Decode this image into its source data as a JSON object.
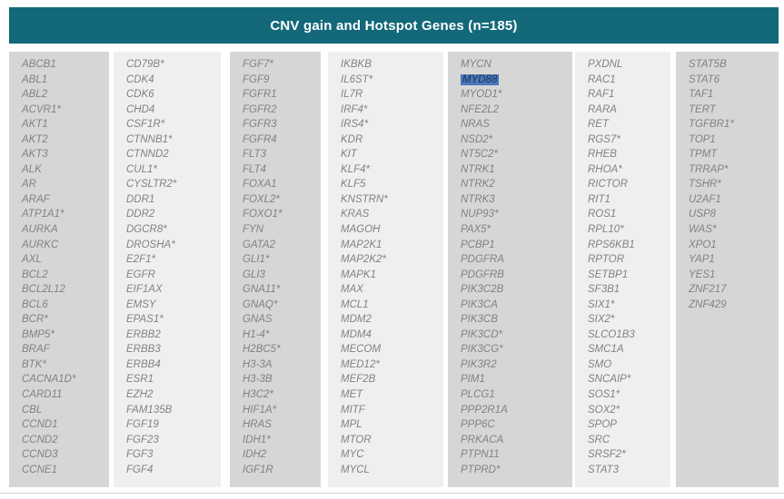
{
  "title": "CNV gain and Hotspot Genes (n=185)",
  "highlight": {
    "gene": "MYD88",
    "background": "#4878b8",
    "text_color": "#1c3257"
  },
  "colors": {
    "header_background": "#136879",
    "header_text": "#ffffff",
    "column_dark": "#d6d6d6",
    "column_light": "#efefef",
    "gene_text": "#828282"
  },
  "columns": [
    [
      "ABCB1",
      "ABL1",
      "ABL2",
      "ACVR1*",
      "AKT1",
      "AKT2",
      "AKT3",
      "ALK",
      "AR",
      "ARAF",
      "ATP1A1*",
      "AURKA",
      "AURKC",
      "AXL",
      "BCL2",
      "BCL2L12",
      "BCL6",
      "BCR*",
      "BMP5*",
      "BRAF",
      "BTK*",
      "CACNA1D*",
      "CARD11",
      "CBL",
      "CCND1",
      "CCND2",
      "CCND3",
      "CCNE1"
    ],
    [
      "CD79B*",
      "CDK4",
      "CDK6",
      "CHD4",
      "CSF1R*",
      "CTNNB1*",
      "CTNND2",
      "CUL1*",
      "CYSLTR2*",
      "DDR1",
      "DDR2",
      "DGCR8*",
      "DROSHA*",
      "E2F1*",
      "EGFR",
      "EIF1AX",
      "EMSY",
      "EPAS1*",
      "ERBB2",
      "ERBB3",
      "ERBB4",
      "ESR1",
      "EZH2",
      "FAM135B",
      "FGF19",
      "FGF23",
      "FGF3",
      "FGF4"
    ],
    [
      "FGF7*",
      "FGF9",
      "FGFR1",
      "FGFR2",
      "FGFR3",
      "FGFR4",
      "FLT3",
      "FLT4",
      "FOXA1",
      "FOXL2*",
      "FOXO1*",
      "FYN",
      "GATA2",
      "GLI1*",
      "GLI3",
      "GNA11*",
      "GNAQ*",
      "GNAS",
      "H1-4*",
      "H2BC5*",
      "H3-3A",
      "H3-3B",
      "H3C2*",
      "HIF1A*",
      "HRAS",
      "IDH1*",
      "IDH2",
      "IGF1R"
    ],
    [
      "IKBKB",
      "IL6ST*",
      "IL7R",
      "IRF4*",
      "IRS4*",
      "KDR",
      "KIT",
      "KLF4*",
      "KLF5",
      "KNSTRN*",
      "KRAS",
      "MAGOH",
      "MAP2K1",
      "MAP2K2*",
      "MAPK1",
      "MAX",
      "MCL1",
      "MDM2",
      "MDM4",
      "MECOM",
      "MED12*",
      "MEF2B",
      "MET",
      "MITF",
      "MPL",
      "MTOR",
      "MYC",
      "MYCL"
    ],
    [
      "MYCN",
      "MYD88",
      "MYOD1*",
      "NFE2L2",
      "NRAS",
      "NSD2*",
      "NT5C2*",
      "NTRK1",
      "NTRK2",
      "NTRK3",
      "NUP93*",
      "PAX5*",
      "PCBP1",
      "PDGFRA",
      "PDGFRB",
      "PIK3C2B",
      "PIK3CA",
      "PIK3CB",
      "PIK3CD*",
      "PIK3CG*",
      "PIK3R2",
      "PIM1",
      "PLCG1",
      "PPP2R1A",
      "PPP6C",
      "PRKACA",
      "PTPN11",
      "PTPRD*"
    ],
    [
      "PXDNL",
      "RAC1",
      "RAF1",
      "RARA",
      "RET",
      "RGS7*",
      "RHEB",
      "RHOA*",
      "RICTOR",
      "RIT1",
      "ROS1",
      "RPL10*",
      "RPS6KB1",
      "RPTOR",
      "SETBP1",
      "SF3B1",
      "SIX1*",
      "SIX2*",
      "SLCO1B3",
      "SMC1A",
      "SMO",
      "SNCAIP*",
      "SOS1*",
      "SOX2*",
      "SPOP",
      "SRC",
      "SRSF2*",
      "STAT3"
    ],
    [
      "STAT5B",
      "STAT6",
      "TAF1",
      "TERT",
      "TGFBR1*",
      "TOP1",
      "TPMT",
      "TRRAP*",
      "TSHR*",
      "U2AF1",
      "USP8",
      "WAS*",
      "XPO1",
      "YAP1",
      "YES1",
      "ZNF217",
      "ZNF429"
    ]
  ]
}
